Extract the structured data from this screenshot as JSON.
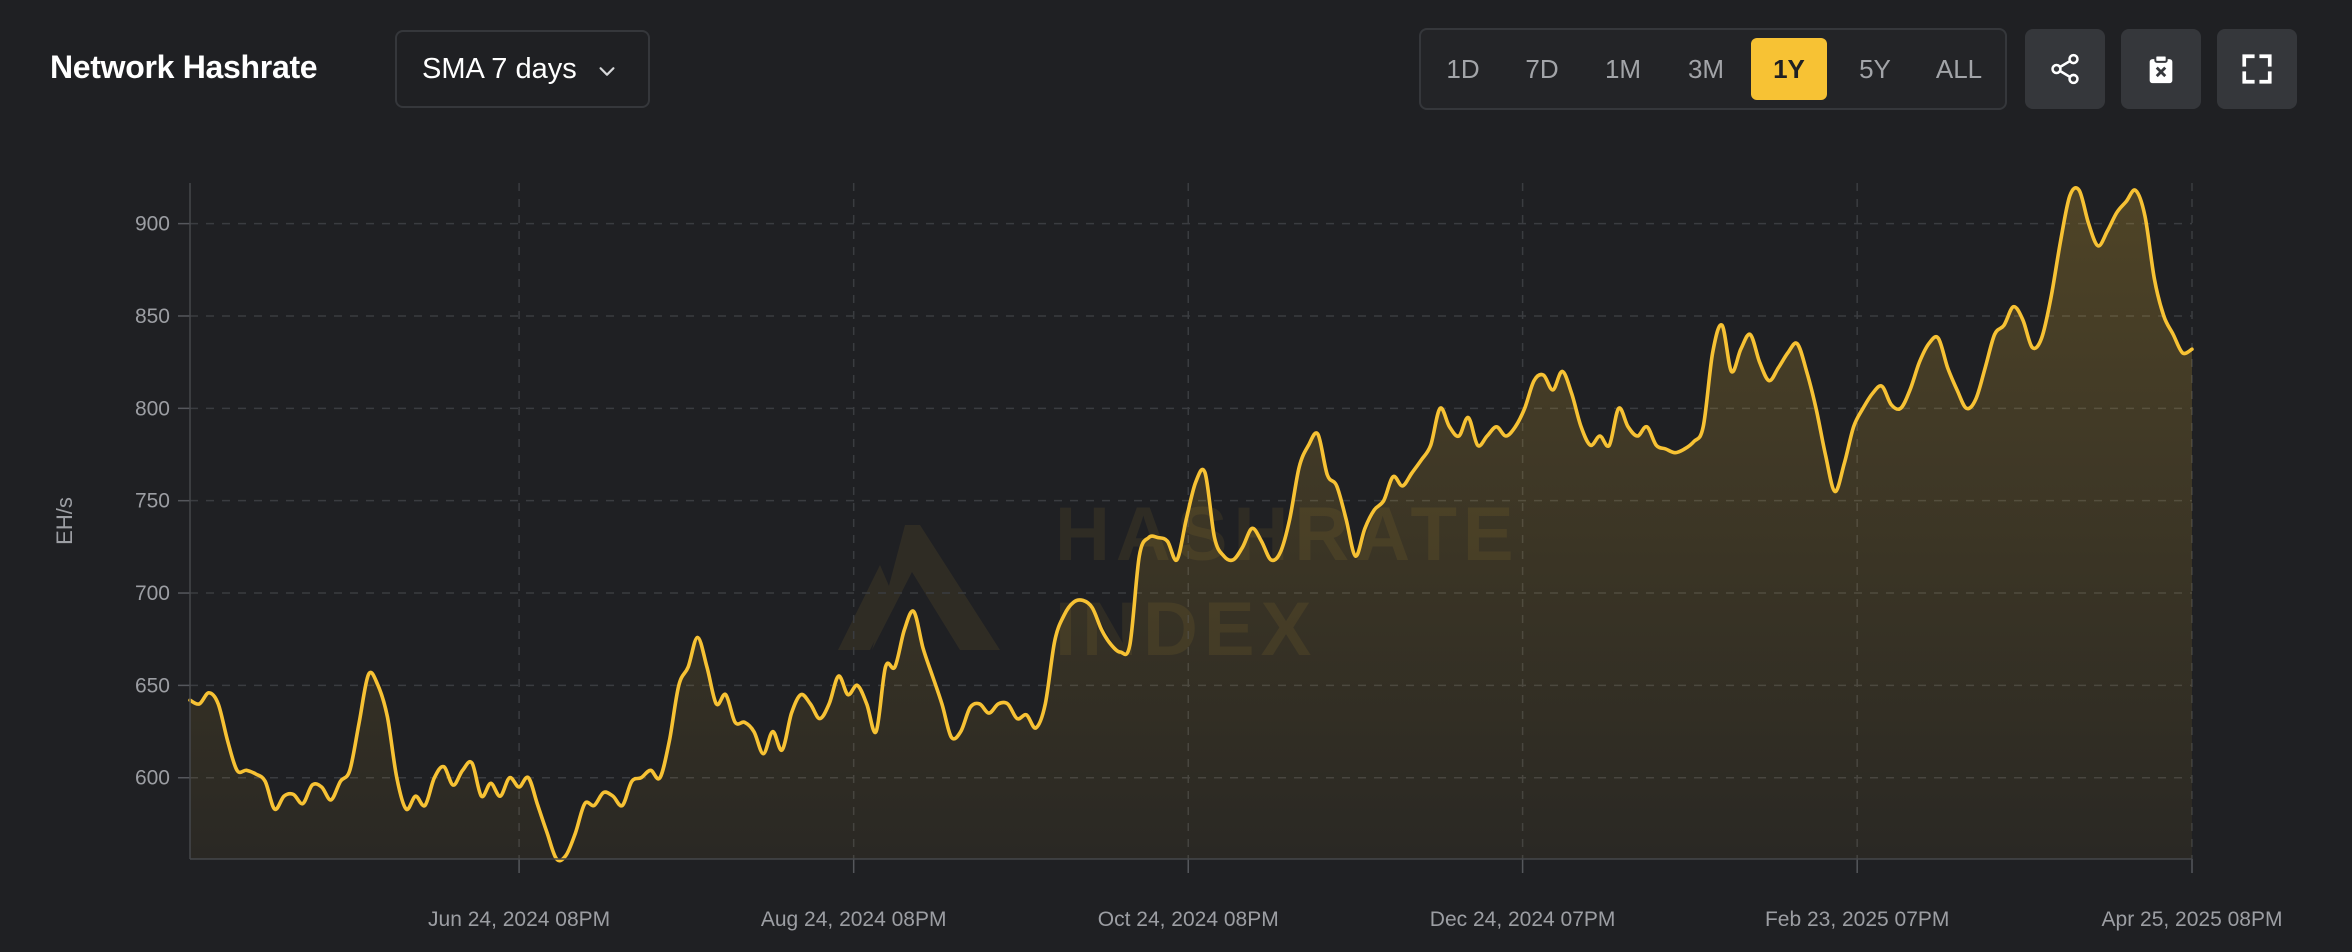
{
  "header": {
    "title": "Network Hashrate",
    "sma_select": {
      "value": "SMA 7 days"
    },
    "range_buttons": [
      {
        "label": "1D",
        "active": false
      },
      {
        "label": "7D",
        "active": false
      },
      {
        "label": "1M",
        "active": false
      },
      {
        "label": "3M",
        "active": false
      },
      {
        "label": "1Y",
        "active": true
      },
      {
        "label": "5Y",
        "active": false
      },
      {
        "label": "ALL",
        "active": false
      }
    ],
    "actions": [
      {
        "name": "share-icon"
      },
      {
        "name": "clipboard-icon"
      },
      {
        "name": "fullscreen-icon"
      }
    ]
  },
  "watermark": {
    "line1": "HASHRATE",
    "line2": "INDEX"
  },
  "colors": {
    "accent": "#f7c234",
    "background": "#1f2023",
    "grid": "#3a3c40",
    "tick_text": "#9c9ea3"
  },
  "chart_data": {
    "type": "area",
    "ylabel": "EH/s",
    "xlabel": "",
    "ylim": [
      556,
      922
    ],
    "yticks": [
      600,
      650,
      700,
      750,
      800,
      850,
      900
    ],
    "grid": true,
    "xticks": [
      "Jun 24, 2024 08PM",
      "Aug 24, 2024 08PM",
      "Oct 24, 2024 08PM",
      "Dec 24, 2024 07PM",
      "Feb 23, 2025 07PM",
      "Apr 25, 2025 08PM"
    ],
    "x_start": "2024-04-25",
    "x_end": "2025-04-25",
    "series": [
      {
        "values": [
          642,
          640,
          646,
          640,
          620,
          604,
          604,
          602,
          598,
          583,
          590,
          591,
          586,
          596,
          595,
          588,
          598,
          604,
          630,
          656,
          650,
          633,
          600,
          583,
          590,
          585,
          600,
          606,
          596,
          604,
          608,
          590,
          597,
          590,
          600,
          595,
          600,
          585,
          570,
          556,
          558,
          570,
          586,
          585,
          592,
          590,
          585,
          598,
          600,
          604,
          600,
          620,
          650,
          660,
          676,
          660,
          640,
          645,
          630,
          630,
          625,
          613,
          625,
          615,
          635,
          645,
          640,
          632,
          640,
          655,
          645,
          650,
          640,
          625,
          660,
          660,
          680,
          690,
          670,
          655,
          640,
          622,
          625,
          638,
          640,
          635,
          640,
          640,
          632,
          634,
          627,
          640,
          674,
          688,
          695,
          696,
          692,
          680,
          672,
          668,
          672,
          720,
          730,
          730,
          728,
          718,
          740,
          760,
          765,
          730,
          720,
          718,
          725,
          735,
          728,
          718,
          722,
          740,
          768,
          780,
          786,
          764,
          758,
          740,
          720,
          735,
          745,
          750,
          763,
          758,
          765,
          772,
          780,
          800,
          790,
          785,
          795,
          780,
          785,
          790,
          785,
          790,
          800,
          815,
          818,
          810,
          820,
          808,
          790,
          780,
          785,
          780,
          800,
          790,
          785,
          790,
          780,
          778,
          776,
          778,
          782,
          790,
          830,
          845,
          820,
          832,
          840,
          825,
          815,
          822,
          830,
          835,
          820,
          800,
          775,
          755,
          770,
          790,
          800,
          808,
          812,
          802,
          800,
          810,
          825,
          835,
          838,
          822,
          810,
          800,
          805,
          822,
          840,
          845,
          855,
          848,
          833,
          838,
          860,
          890,
          915,
          918,
          900,
          888,
          896,
          906,
          912,
          918,
          904,
          870,
          850,
          840,
          830,
          832
        ]
      }
    ]
  }
}
